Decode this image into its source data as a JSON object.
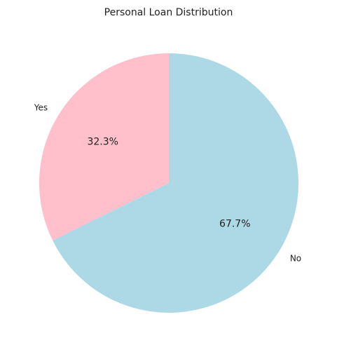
{
  "chart_data": {
    "type": "pie",
    "title": "Personal Loan Distribution",
    "categories": [
      "No",
      "Yes"
    ],
    "values": [
      67.7,
      32.3
    ],
    "value_labels": [
      "67.7%",
      "32.3%"
    ],
    "colors": [
      "#add8e6",
      "#ffc0cb"
    ],
    "start_angle_deg": 90,
    "direction": "clockwise",
    "legend": "none"
  }
}
